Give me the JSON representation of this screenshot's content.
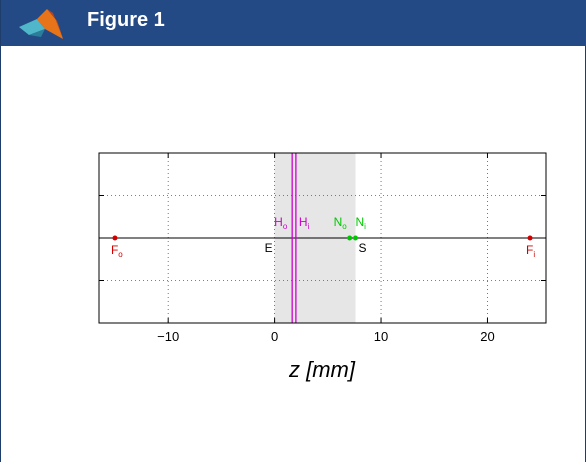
{
  "window": {
    "title": "Figure 1",
    "title_bar_color": "#244a86",
    "icon": "matlab-logo-icon"
  },
  "chart_data": {
    "type": "scatter",
    "xlabel": "z [mm]",
    "ylabel": "",
    "title": "",
    "xlim": [
      -16.5,
      25.5
    ],
    "ylim": [
      -1,
      1
    ],
    "x_ticks": [
      -10,
      0,
      10,
      20
    ],
    "x_tick_labels": [
      "−10",
      "0",
      "10",
      "20"
    ],
    "grid": true,
    "grid_style": "dotted",
    "shaded_region": {
      "x0": 0.0,
      "x1": 7.6,
      "color": "#e6e6e6"
    },
    "optical_axis": {
      "y": 0
    },
    "vertical_lines": [
      {
        "x": 1.65,
        "color": "#d000d0",
        "label": "Ho"
      },
      {
        "x": 2.0,
        "color": "#d000d0",
        "label": "Hi"
      }
    ],
    "points": [
      {
        "label": "Fo",
        "base": "F",
        "sub": "o",
        "x": -15.0,
        "color": "#d00000",
        "label_pos": "below"
      },
      {
        "label": "Fi",
        "base": "F",
        "sub": "i",
        "x": 24.0,
        "color": "#d00000",
        "label_pos": "below"
      },
      {
        "label": "No",
        "base": "N",
        "sub": "o",
        "x": 7.05,
        "color": "#00c800",
        "label_pos": "above"
      },
      {
        "label": "Ni",
        "base": "N",
        "sub": "i",
        "x": 7.6,
        "color": "#00c800",
        "label_pos": "above"
      }
    ],
    "surface_labels": [
      {
        "label": "E",
        "x": 0.0,
        "color": "#000000",
        "label_pos": "below-left"
      },
      {
        "label": "S",
        "x": 7.6,
        "color": "#000000",
        "label_pos": "below-right"
      }
    ],
    "principal_labels": [
      {
        "label": "Ho",
        "base": "H",
        "sub": "o",
        "color": "#d000d0"
      },
      {
        "label": "Hi",
        "base": "H",
        "sub": "i",
        "color": "#d000d0"
      }
    ]
  }
}
